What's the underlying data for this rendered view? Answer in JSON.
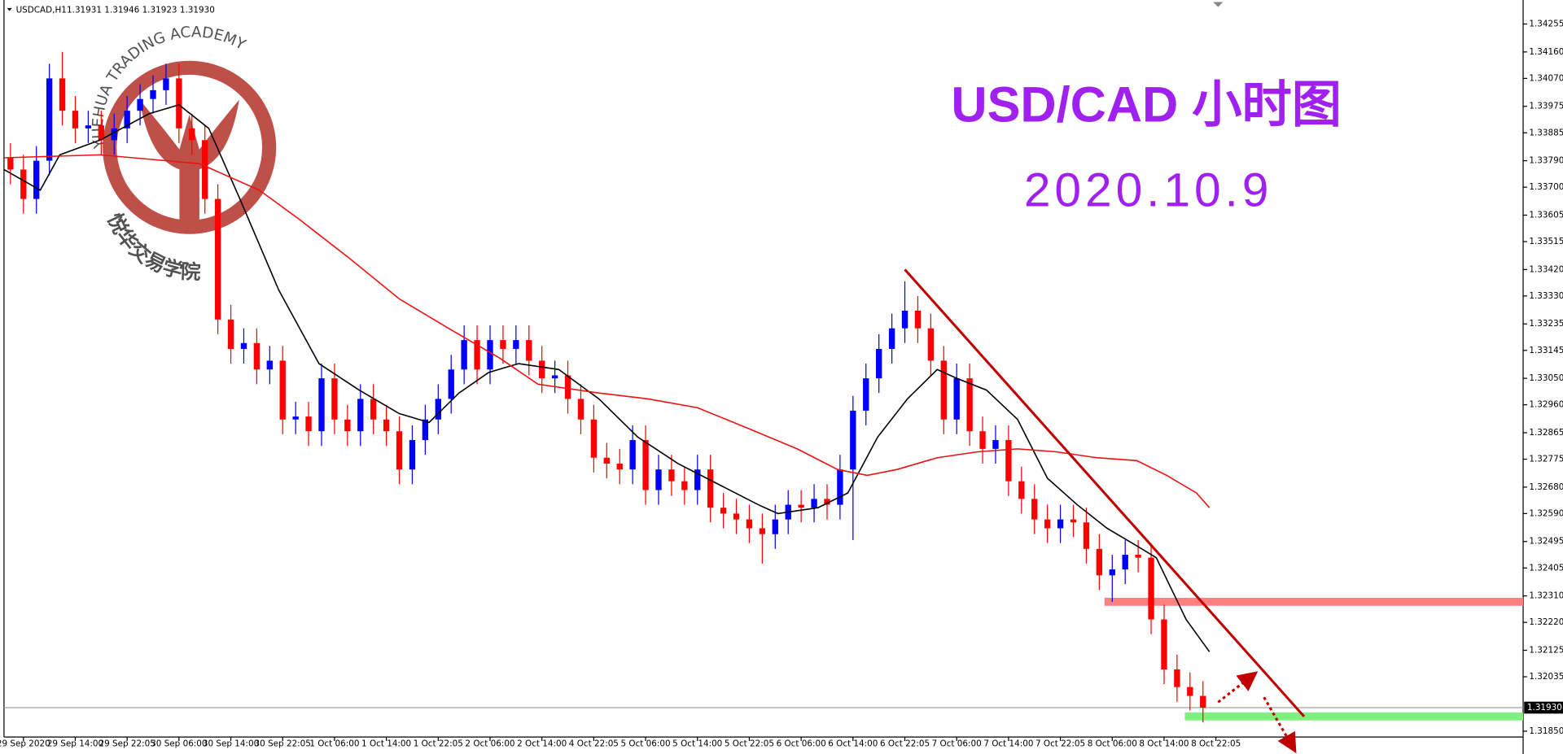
{
  "chart_data": {
    "type": "candlestick",
    "symbol": "USDCAD,H1",
    "ohlc_text": "1.31931 1.31946 1.31923 1.31930",
    "title": "USD/CAD 小时图",
    "subtitle": "2020.10.9",
    "watermark": "YUEHUA TRADING ACADEMY",
    "watermark_cn": "悦华交易学院",
    "up_color": "#0000ff",
    "down_color": "#ff0000",
    "open": [
      1.338,
      1.3376,
      1.3366,
      1.3379,
      1.3407,
      1.3396,
      1.339,
      1.3391,
      1.3386,
      1.339,
      1.3396,
      1.34,
      1.3403,
      1.3407,
      1.339,
      1.3386,
      1.3366,
      1.3325,
      1.3315,
      1.3317,
      1.3308,
      1.3311,
      1.3291,
      1.3292,
      1.3287,
      1.3305,
      1.3291,
      1.3287,
      1.3298,
      1.3291,
      1.3287,
      1.3274,
      1.3284,
      1.3291,
      1.3298,
      1.3308,
      1.3318,
      1.3308,
      1.3318,
      1.3315,
      1.3318,
      1.3311,
      1.3305,
      1.3306,
      1.3298,
      1.3291,
      1.3278,
      1.3276,
      1.3274,
      1.3284,
      1.3267,
      1.3274,
      1.327,
      1.3267,
      1.3274,
      1.3261,
      1.3259,
      1.3257,
      1.3254,
      1.3252,
      1.3257,
      1.3262,
      1.3261,
      1.3264,
      1.3262,
      1.3274,
      1.3294,
      1.3305,
      1.3315,
      1.3322,
      1.3328,
      1.3322,
      1.3311,
      1.3291,
      1.3305,
      1.3287,
      1.3281,
      1.3284,
      1.327,
      1.3264,
      1.3257,
      1.3254,
      1.3257,
      1.3256,
      1.3247,
      1.3238,
      1.324,
      1.3245,
      1.3244,
      1.3223,
      1.3206,
      1.32,
      1.3197
    ],
    "high": [
      1.3385,
      1.3381,
      1.3384,
      1.3412,
      1.3416,
      1.3401,
      1.3396,
      1.3396,
      1.3395,
      1.3401,
      1.3405,
      1.3408,
      1.3412,
      1.3412,
      1.3395,
      1.3391,
      1.3371,
      1.333,
      1.3322,
      1.3322,
      1.3316,
      1.3316,
      1.3297,
      1.3297,
      1.331,
      1.331,
      1.3296,
      1.3303,
      1.3303,
      1.3296,
      1.3292,
      1.3289,
      1.3296,
      1.3303,
      1.3313,
      1.3323,
      1.3323,
      1.3323,
      1.3323,
      1.3323,
      1.3323,
      1.3316,
      1.3311,
      1.3311,
      1.3303,
      1.3296,
      1.3283,
      1.3281,
      1.3289,
      1.3289,
      1.3279,
      1.3279,
      1.3275,
      1.3279,
      1.3279,
      1.3266,
      1.3264,
      1.3262,
      1.3259,
      1.3262,
      1.3267,
      1.3267,
      1.3269,
      1.3269,
      1.3279,
      1.3299,
      1.331,
      1.332,
      1.3327,
      1.3338,
      1.3333,
      1.3327,
      1.3316,
      1.331,
      1.331,
      1.3292,
      1.3289,
      1.3289,
      1.3275,
      1.3269,
      1.3262,
      1.3262,
      1.3262,
      1.3261,
      1.3252,
      1.3245,
      1.325,
      1.325,
      1.3249,
      1.3228,
      1.3211,
      1.3205,
      1.3202
    ],
    "low": [
      1.3371,
      1.3361,
      1.3361,
      1.3374,
      1.3391,
      1.3385,
      1.3385,
      1.3381,
      1.3381,
      1.3385,
      1.3391,
      1.3395,
      1.3398,
      1.3385,
      1.3381,
      1.3361,
      1.332,
      1.331,
      1.331,
      1.3303,
      1.3303,
      1.3286,
      1.3286,
      1.3282,
      1.3282,
      1.3286,
      1.3282,
      1.3282,
      1.3286,
      1.3282,
      1.3269,
      1.3269,
      1.3279,
      1.3286,
      1.3293,
      1.3303,
      1.3303,
      1.3303,
      1.331,
      1.331,
      1.3306,
      1.33,
      1.33,
      1.3293,
      1.3286,
      1.3273,
      1.3271,
      1.3269,
      1.3269,
      1.3262,
      1.3262,
      1.3265,
      1.3262,
      1.3262,
      1.3256,
      1.3254,
      1.3252,
      1.3249,
      1.3242,
      1.3247,
      1.3252,
      1.3256,
      1.3256,
      1.3257,
      1.3257,
      1.325,
      1.3289,
      1.33,
      1.331,
      1.3317,
      1.3317,
      1.3306,
      1.3286,
      1.3286,
      1.3282,
      1.3276,
      1.3276,
      1.3265,
      1.3259,
      1.3252,
      1.3249,
      1.3249,
      1.3251,
      1.3242,
      1.3233,
      1.3229,
      1.3235,
      1.3239,
      1.3218,
      1.3201,
      1.3195,
      1.3192,
      1.3188
    ],
    "close": [
      1.3376,
      1.3366,
      1.3379,
      1.3407,
      1.3396,
      1.339,
      1.3391,
      1.3386,
      1.339,
      1.3396,
      1.34,
      1.3403,
      1.3407,
      1.339,
      1.3386,
      1.3366,
      1.3325,
      1.3315,
      1.3317,
      1.3308,
      1.3311,
      1.3291,
      1.3292,
      1.3287,
      1.3305,
      1.3291,
      1.3287,
      1.3298,
      1.3291,
      1.3287,
      1.3274,
      1.3284,
      1.3291,
      1.3298,
      1.3308,
      1.3318,
      1.3308,
      1.3318,
      1.3315,
      1.3318,
      1.3311,
      1.3305,
      1.3306,
      1.3298,
      1.3291,
      1.3278,
      1.3276,
      1.3274,
      1.3284,
      1.3267,
      1.3274,
      1.327,
      1.3267,
      1.3274,
      1.3261,
      1.3259,
      1.3257,
      1.3254,
      1.3252,
      1.3257,
      1.3262,
      1.3261,
      1.3264,
      1.3262,
      1.3274,
      1.3294,
      1.3305,
      1.3315,
      1.3322,
      1.3328,
      1.3322,
      1.3311,
      1.3291,
      1.3305,
      1.3287,
      1.3281,
      1.3284,
      1.327,
      1.3264,
      1.3257,
      1.3254,
      1.3257,
      1.3256,
      1.3247,
      1.3238,
      1.324,
      1.3245,
      1.3244,
      1.3223,
      1.3206,
      1.32,
      1.3197,
      1.3193
    ],
    "lines": [
      {
        "color": "#000000",
        "x": [
          -0.5,
          2.3,
          3.8,
          6.9,
          10.7,
          13,
          15.3,
          17.7,
          20.7,
          23.8,
          26.9,
          30,
          32.3,
          34.6,
          36.9,
          39.2,
          42.3,
          45.4,
          48.4,
          51.5,
          54.6,
          57.7,
          59.2,
          62.3,
          64.6,
          66.9,
          69.2,
          71.5,
          73,
          75.3,
          77.7,
          80,
          82.3,
          84.6,
          86.9,
          88.4,
          90.7,
          92.5
        ],
        "values": [
          1.3376,
          1.3369,
          1.3381,
          1.3386,
          1.3395,
          1.3398,
          1.339,
          1.3366,
          1.3335,
          1.331,
          1.3301,
          1.3293,
          1.329,
          1.33,
          1.3307,
          1.331,
          1.3308,
          1.3298,
          1.3285,
          1.3276,
          1.3269,
          1.3262,
          1.3259,
          1.3261,
          1.3266,
          1.3285,
          1.3298,
          1.3308,
          1.3305,
          1.3301,
          1.3291,
          1.3271,
          1.3262,
          1.3254,
          1.3248,
          1.3244,
          1.3223,
          1.3212
        ]
      },
      {
        "color": "#ee1111",
        "x": [
          -0.5,
          6.9,
          14.6,
          19.2,
          22.3,
          26.1,
          30,
          33.8,
          37.7,
          40.7,
          45.4,
          49.2,
          53,
          56.9,
          60.7,
          63.8,
          66.1,
          68.4,
          71.5,
          74.6,
          77.7,
          80.7,
          83.8,
          86.9,
          89.2,
          91.5,
          92.5
        ],
        "values": [
          1.338,
          1.3381,
          1.3378,
          1.3369,
          1.3359,
          1.3346,
          1.3332,
          1.3322,
          1.3312,
          1.3303,
          1.33,
          1.3298,
          1.3295,
          1.3288,
          1.3281,
          1.3274,
          1.3272,
          1.3274,
          1.3278,
          1.328,
          1.3281,
          1.328,
          1.3278,
          1.3277,
          1.3272,
          1.3266,
          1.3261
        ]
      }
    ],
    "trendline": {
      "from": [
        69,
        1.3342
      ],
      "to": [
        99.8,
        1.319
      ],
      "color": "#c00000"
    },
    "zones": [
      {
        "value": 1.3229,
        "x_start": 84.4,
        "color": "#ff8080"
      },
      {
        "value": 1.319,
        "x_start": 90.6,
        "color": "#80f080"
      }
    ],
    "last_price": {
      "value": 1.3193,
      "label": "1.31930"
    },
    "xlim": [
      -0.5,
      116.7
    ],
    "ylim": [
      1.3183,
      1.34323
    ],
    "xticks": [
      {
        "value": 1,
        "label": "29 Sep 2020"
      },
      {
        "value": 5,
        "label": "29 Sep 14:00"
      },
      {
        "value": 9,
        "label": "29 Sep 22:05"
      },
      {
        "value": 13,
        "label": "30 Sep 06:00"
      },
      {
        "value": 17,
        "label": "30 Sep 14:00"
      },
      {
        "value": 21,
        "label": "30 Sep 22:05"
      },
      {
        "value": 25,
        "label": "1 Oct 06:00"
      },
      {
        "value": 29,
        "label": "1 Oct 14:00"
      },
      {
        "value": 33,
        "label": "1 Oct 22:05"
      },
      {
        "value": 37,
        "label": "2 Oct 06:00"
      },
      {
        "value": 41,
        "label": "2 Oct 14:00"
      },
      {
        "value": 45,
        "label": "4 Oct 22:05"
      },
      {
        "value": 49,
        "label": "5 Oct 06:00"
      },
      {
        "value": 53,
        "label": "5 Oct 14:00"
      },
      {
        "value": 57,
        "label": "5 Oct 22:05"
      },
      {
        "value": 61,
        "label": "6 Oct 06:00"
      },
      {
        "value": 65,
        "label": "6 Oct 14:00"
      },
      {
        "value": 69,
        "label": "6 Oct 22:05"
      },
      {
        "value": 73,
        "label": "7 Oct 06:00"
      },
      {
        "value": 77,
        "label": "7 Oct 14:00"
      },
      {
        "value": 81,
        "label": "7 Oct 22:05"
      },
      {
        "value": 85,
        "label": "8 Oct 06:00"
      },
      {
        "value": 89,
        "label": "8 Oct 14:00"
      },
      {
        "value": 93,
        "label": "8 Oct 22:05"
      }
    ],
    "yticks": [
      1.34255,
      {
        "value": 1.3416,
        "label": "1.34160"
      },
      {
        "value": 1.3407,
        "label": "1.34070"
      },
      1.33975,
      1.33885,
      {
        "value": 1.3379,
        "label": "1.33790"
      },
      {
        "value": 1.337,
        "label": "1.33700"
      },
      1.33605,
      1.33515,
      {
        "value": 1.3342,
        "label": "1.33420"
      },
      {
        "value": 1.3333,
        "label": "1.33330"
      },
      1.33235,
      1.33145,
      {
        "value": 1.3305,
        "label": "1.33050"
      },
      {
        "value": 1.3296,
        "label": "1.32960"
      },
      1.32865,
      1.32775,
      {
        "value": 1.3268,
        "label": "1.32680"
      },
      {
        "value": 1.3259,
        "label": "1.32590"
      },
      1.32495,
      1.32405,
      {
        "value": 1.3231,
        "label": "1.32310"
      },
      {
        "value": 1.3222,
        "label": "1.32220"
      },
      1.32125,
      1.32035,
      {
        "value": 1.3185,
        "label": "1.31850"
      }
    ],
    "grid": false
  }
}
